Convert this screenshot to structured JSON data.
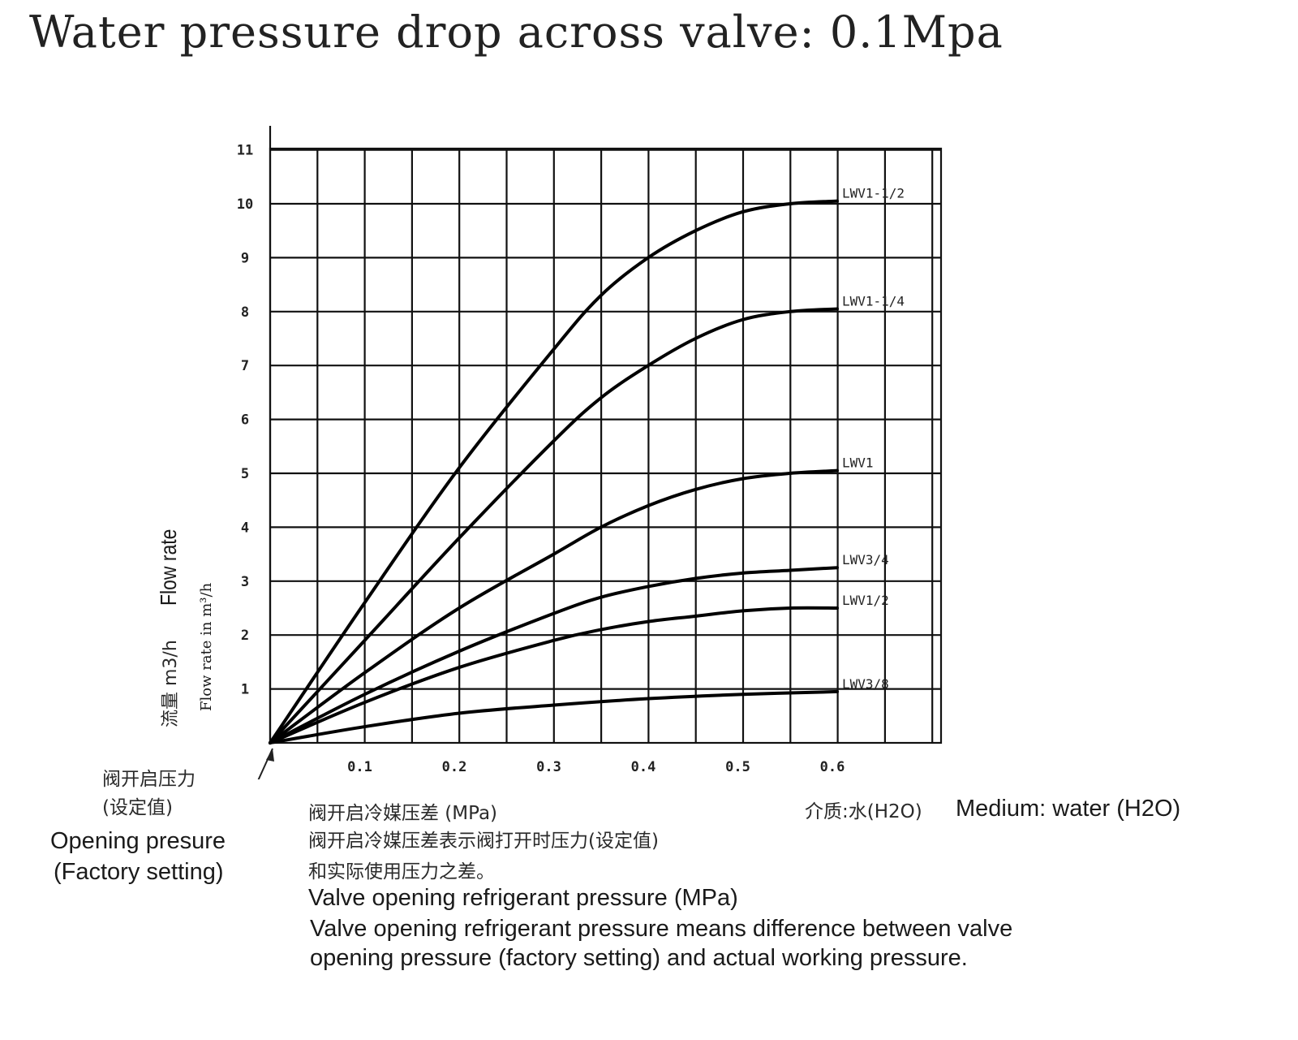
{
  "title": "Water pressure drop across valve: 0.1Mpa",
  "y_axis": {
    "label_en": "Flow rate",
    "label_cn": "流量 m3/h",
    "label_en_small": "Flow rate in m³/h"
  },
  "opening_pressure": {
    "cn_line1": "阀开启压力",
    "cn_line2": "(设定值)",
    "en_line1": "Opening presure",
    "en_line2": "(Factory setting)"
  },
  "x_axis": {
    "cn_label": "阀开启冷媒压差 (MPa)",
    "cn_note_line1": "阀开启冷媒压差表示阀打开时压力(设定值)",
    "cn_note_line2": "和实际使用压力之差。",
    "en_label": "Valve opening refrigerant pressure (MPa)",
    "en_note_line1": "Valve opening refrigerant pressure means difference between valve",
    "en_note_line2": "opening pressure (factory setting) and actual working pressure."
  },
  "medium": {
    "cn": "介质:水(H2O)",
    "en": "Medium: water (H2O)"
  },
  "chart_data": {
    "type": "line",
    "title": "Water pressure drop across valve: 0.1Mpa",
    "xlabel": "Valve opening refrigerant pressure (MPa)",
    "ylabel": "Flow rate in m³/h",
    "xlim": [
      0,
      0.7
    ],
    "ylim": [
      0,
      11
    ],
    "x_ticks": [
      "0.1",
      "0.2",
      "0.3",
      "0.4",
      "0.5",
      "0.6"
    ],
    "y_ticks": [
      "1",
      "2",
      "3",
      "4",
      "5",
      "6",
      "7",
      "8",
      "9",
      "10",
      "11"
    ],
    "grid": true,
    "series": [
      {
        "name": "LWV1-1/2",
        "x": [
          0,
          0.1,
          0.2,
          0.3,
          0.35,
          0.4,
          0.45,
          0.5,
          0.55,
          0.6
        ],
        "y": [
          0,
          2.6,
          5.1,
          7.3,
          8.3,
          9.0,
          9.5,
          9.85,
          10.0,
          10.05
        ]
      },
      {
        "name": "LWV1-1/4",
        "x": [
          0,
          0.1,
          0.2,
          0.3,
          0.35,
          0.4,
          0.45,
          0.5,
          0.55,
          0.6
        ],
        "y": [
          0,
          1.9,
          3.8,
          5.6,
          6.4,
          7.0,
          7.5,
          7.85,
          8.0,
          8.05
        ]
      },
      {
        "name": "LWV1",
        "x": [
          0,
          0.1,
          0.2,
          0.3,
          0.35,
          0.4,
          0.45,
          0.5,
          0.55,
          0.6
        ],
        "y": [
          0,
          1.3,
          2.5,
          3.5,
          4.0,
          4.4,
          4.7,
          4.9,
          5.0,
          5.05
        ]
      },
      {
        "name": "LWV3/4",
        "x": [
          0,
          0.1,
          0.2,
          0.3,
          0.35,
          0.4,
          0.45,
          0.5,
          0.55,
          0.6
        ],
        "y": [
          0,
          0.9,
          1.7,
          2.4,
          2.7,
          2.9,
          3.05,
          3.15,
          3.2,
          3.25
        ]
      },
      {
        "name": "LWV1/2",
        "x": [
          0,
          0.1,
          0.2,
          0.3,
          0.35,
          0.4,
          0.45,
          0.5,
          0.55,
          0.6
        ],
        "y": [
          0,
          0.75,
          1.4,
          1.9,
          2.1,
          2.25,
          2.35,
          2.45,
          2.5,
          2.5
        ]
      },
      {
        "name": "LWV3/8",
        "x": [
          0,
          0.1,
          0.2,
          0.3,
          0.4,
          0.5,
          0.6
        ],
        "y": [
          0,
          0.3,
          0.55,
          0.7,
          0.82,
          0.9,
          0.95
        ]
      }
    ]
  }
}
